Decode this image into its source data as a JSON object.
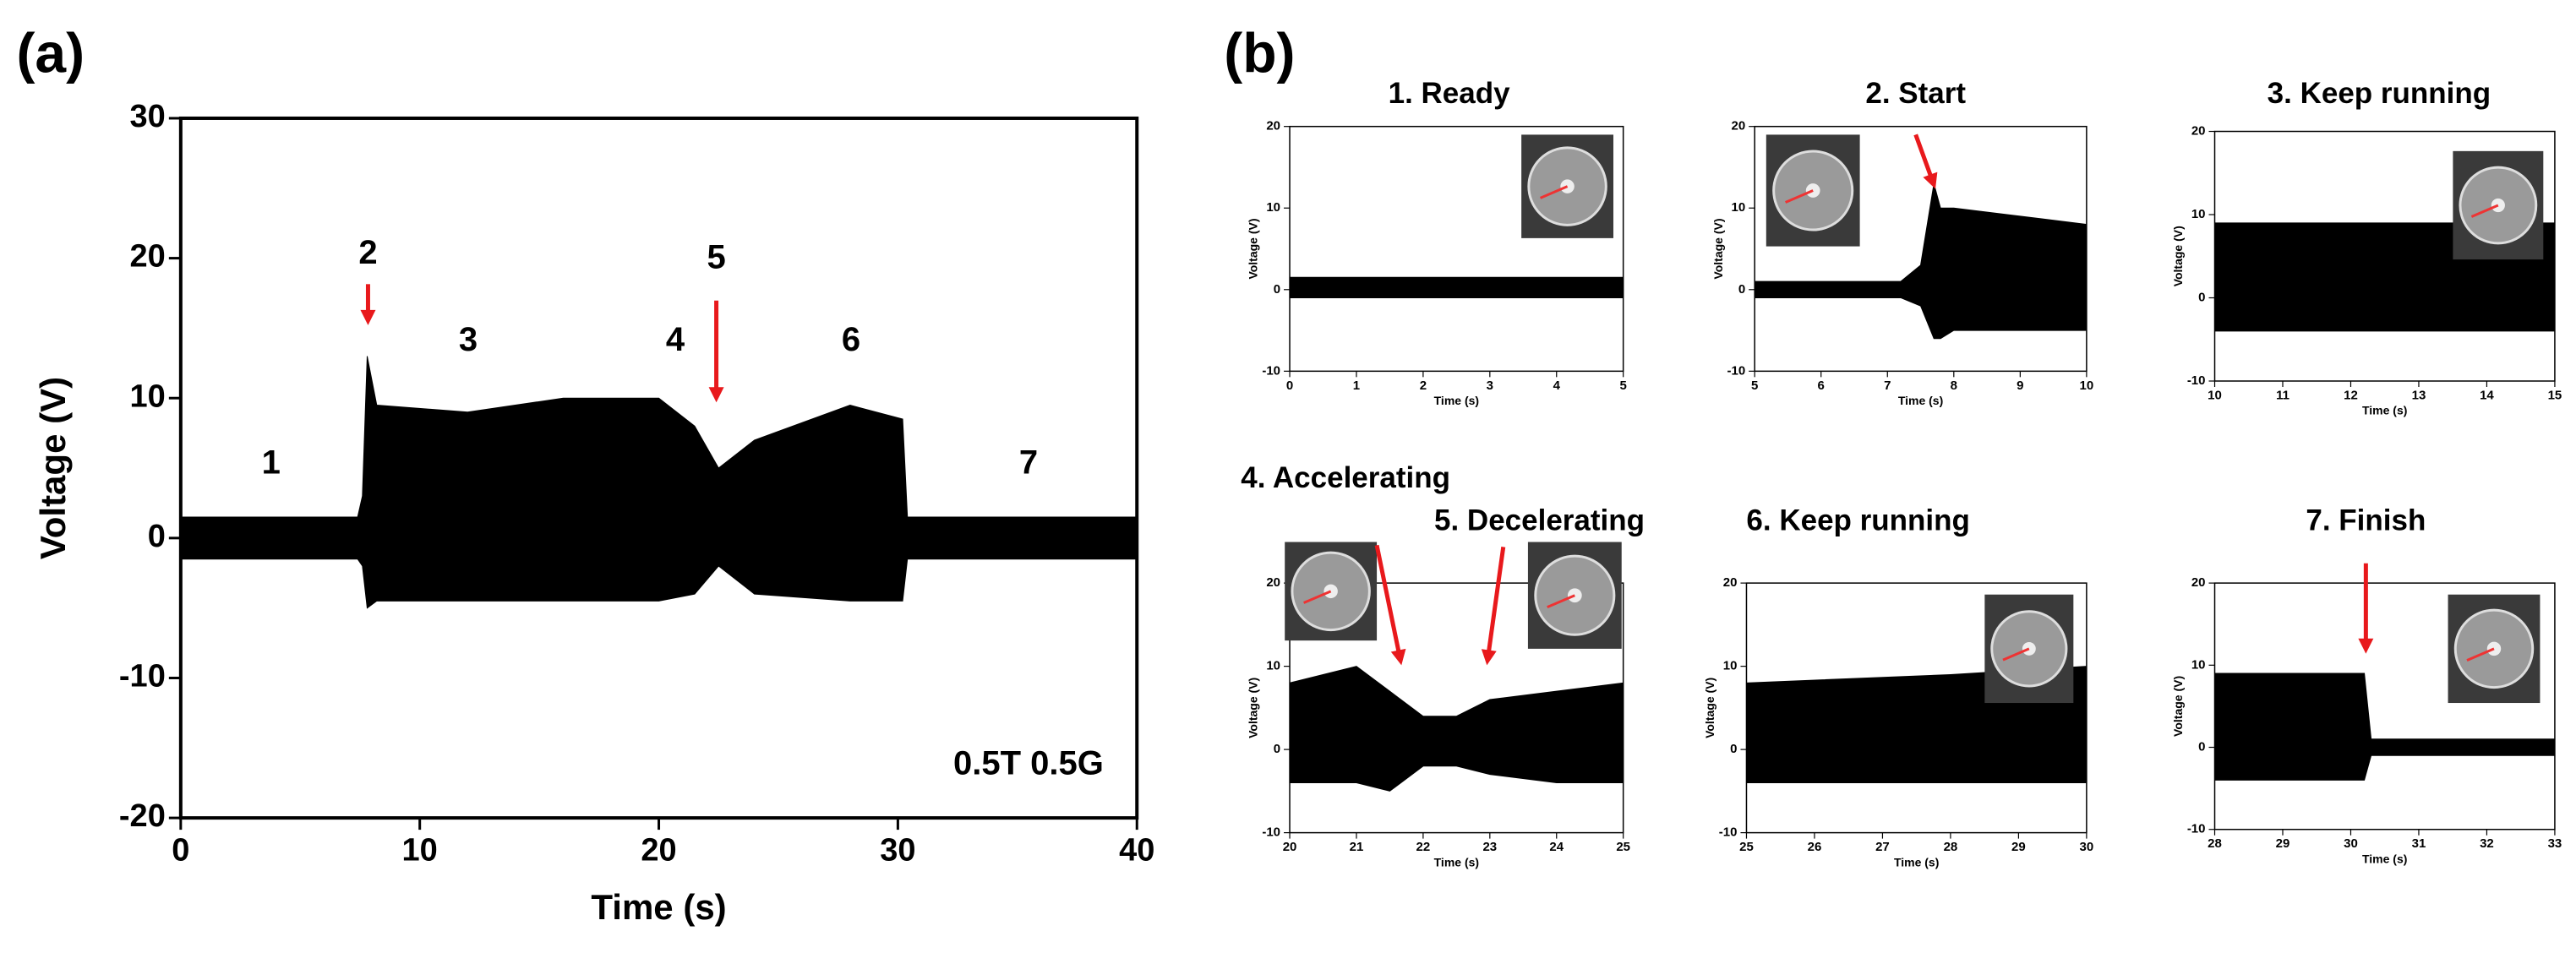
{
  "chart_data": [
    {
      "type": "band",
      "panel_label": "(a)",
      "xlabel": "Time (s)",
      "ylabel": "Voltage (V)",
      "note": "0.5T 0.5G",
      "annotations": [
        "1",
        "2",
        "3",
        "4",
        "5",
        "6",
        "7"
      ],
      "xlim": [
        0,
        40
      ],
      "xticks": [
        0,
        10,
        20,
        30,
        40
      ],
      "ylim": [
        -20,
        30
      ],
      "yticks": [
        -20,
        -10,
        0,
        10,
        20,
        30
      ],
      "x": [
        0,
        7.4,
        7.6,
        7.8,
        8.2,
        12,
        16,
        20,
        21.5,
        22.5,
        24,
        28,
        30.2,
        30.4,
        40
      ],
      "series": [
        {
          "color": "#000000",
          "values": [
            1.5,
            1.5,
            3,
            13,
            9.5,
            9,
            10,
            10,
            8,
            5,
            7,
            9.5,
            8.5,
            1.5,
            1.5
          ]
        },
        {
          "color": "#000000",
          "values": [
            -1.5,
            -1.5,
            -2,
            -5,
            -4.5,
            -4.5,
            -4.5,
            -4.5,
            -4,
            -2,
            -4,
            -4.5,
            -4.5,
            -1.5,
            -1.5
          ]
        }
      ]
    },
    {
      "type": "band",
      "panel_label": "(b)",
      "titles": [
        "1. Ready"
      ],
      "xlabel": "Time (s)",
      "ylabel": "Voltage (V)",
      "xlim": [
        0,
        5
      ],
      "xticks": [
        0,
        1,
        2,
        3,
        4,
        5
      ],
      "ylim": [
        -10,
        20
      ],
      "yticks": [
        -10,
        0,
        10,
        20
      ],
      "x": [
        0,
        5
      ],
      "series": [
        {
          "color": "#000000",
          "values": [
            1.5,
            1.5
          ]
        },
        {
          "color": "#000000",
          "values": [
            -1,
            -1
          ]
        }
      ]
    },
    {
      "type": "band",
      "titles": [
        "2. Start"
      ],
      "xlabel": "Time (s)",
      "ylabel": "Voltage (V)",
      "xlim": [
        5,
        10
      ],
      "xticks": [
        5,
        6,
        7,
        8,
        9,
        10
      ],
      "ylim": [
        -10,
        20
      ],
      "yticks": [
        -10,
        0,
        10,
        20
      ],
      "x": [
        5,
        7.2,
        7.5,
        7.7,
        7.8,
        8,
        9,
        10
      ],
      "series": [
        {
          "color": "#000000",
          "values": [
            1,
            1,
            3,
            13,
            10,
            10,
            9,
            8
          ]
        },
        {
          "color": "#000000",
          "values": [
            -1,
            -1,
            -2,
            -6,
            -6,
            -5,
            -5,
            -5
          ]
        }
      ]
    },
    {
      "type": "band",
      "titles": [
        "3. Keep running"
      ],
      "xlabel": "Time (s)",
      "ylabel": "Voltage (V)",
      "xlim": [
        10,
        15
      ],
      "xticks": [
        10,
        11,
        12,
        13,
        14,
        15
      ],
      "ylim": [
        -10,
        20
      ],
      "yticks": [
        -10,
        0,
        10,
        20
      ],
      "x": [
        10,
        15
      ],
      "series": [
        {
          "color": "#000000",
          "values": [
            9,
            9
          ]
        },
        {
          "color": "#000000",
          "values": [
            -4,
            -4
          ]
        }
      ]
    },
    {
      "type": "band",
      "titles": [
        "4. Accelerating",
        "5. Decelerating"
      ],
      "xlabel": "Time (s)",
      "ylabel": "Voltage (V)",
      "xlim": [
        20,
        25
      ],
      "xticks": [
        20,
        21,
        22,
        23,
        24,
        25
      ],
      "ylim": [
        -10,
        20
      ],
      "yticks": [
        -10,
        0,
        10,
        20
      ],
      "x": [
        20,
        21,
        21.5,
        22,
        22.5,
        23,
        24,
        25
      ],
      "series": [
        {
          "color": "#000000",
          "values": [
            8,
            10,
            7,
            4,
            4,
            6,
            7,
            8
          ]
        },
        {
          "color": "#000000",
          "values": [
            -4,
            -4,
            -5,
            -2,
            -2,
            -3,
            -4,
            -4
          ]
        }
      ]
    },
    {
      "type": "band",
      "titles": [
        "6. Keep running"
      ],
      "xlabel": "Time (s)",
      "ylabel": "Voltage (V)",
      "xlim": [
        25,
        30
      ],
      "xticks": [
        25,
        26,
        27,
        28,
        29,
        30
      ],
      "ylim": [
        -10,
        20
      ],
      "yticks": [
        -10,
        0,
        10,
        20
      ],
      "x": [
        25,
        28,
        30
      ],
      "series": [
        {
          "color": "#000000",
          "values": [
            8,
            9,
            10
          ]
        },
        {
          "color": "#000000",
          "values": [
            -4,
            -4,
            -4
          ]
        }
      ]
    },
    {
      "type": "band",
      "titles": [
        "7. Finish"
      ],
      "xlabel": "Time (s)",
      "ylabel": "Voltage (V)",
      "xlim": [
        28,
        33
      ],
      "xticks": [
        28,
        29,
        30,
        31,
        32,
        33
      ],
      "ylim": [
        -10,
        20
      ],
      "yticks": [
        -10,
        0,
        10,
        20
      ],
      "x": [
        28,
        30.2,
        30.3,
        33
      ],
      "series": [
        {
          "color": "#000000",
          "values": [
            9,
            9,
            1,
            1
          ]
        },
        {
          "color": "#000000",
          "values": [
            -4,
            -4,
            -1,
            -1
          ]
        }
      ]
    }
  ]
}
